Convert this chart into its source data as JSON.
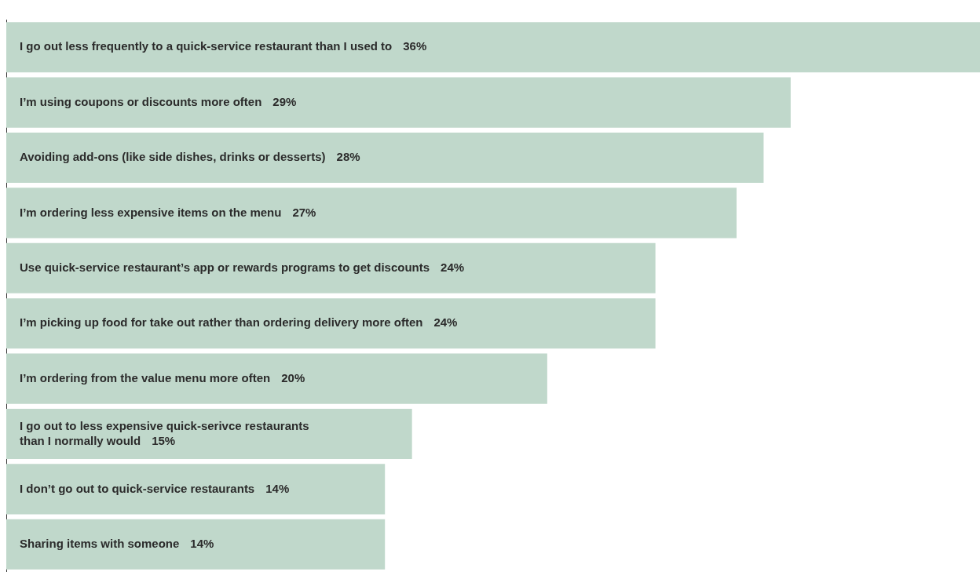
{
  "chart_data": {
    "type": "bar",
    "orientation": "horizontal",
    "categories": [
      "I go out less frequently to a quick-service restaurant than I used to",
      "I’m using coupons or discounts more often",
      "Avoiding add-ons (like side dishes, drinks or desserts)",
      "I’m ordering less expensive items on the menu",
      "Use quick-service restaurant’s app or rewards programs to get discounts",
      "I’m picking up food for take out rather than ordering delivery more often",
      "I’m ordering from the value menu more often",
      "I go out to less expensive quick-serivce restaurants\nthan I normally would",
      "I don’t go out to quick-service restaurants",
      "Sharing items with someone"
    ],
    "values": [
      36,
      29,
      28,
      27,
      24,
      24,
      20,
      15,
      14,
      14
    ],
    "value_labels": [
      "36%",
      "29%",
      "28%",
      "27%",
      "24%",
      "24%",
      "20%",
      "15%",
      "14%",
      "14%"
    ],
    "color": "#c0d8cb",
    "xlim": [
      0,
      36
    ],
    "tick_labels": "y",
    "grid": false,
    "legend": false
  }
}
